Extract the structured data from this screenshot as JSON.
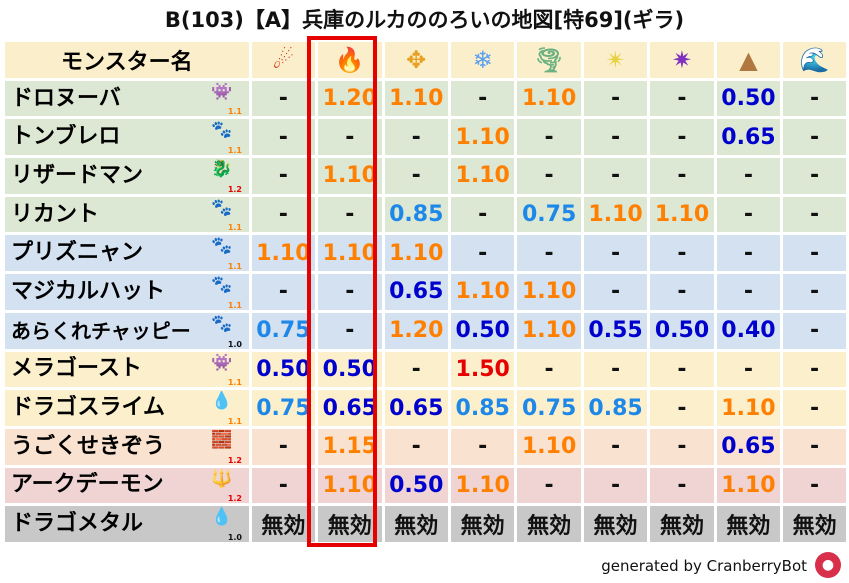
{
  "title": "B(103)【A】兵庫のルカののろいの地図[特69](ギラ)",
  "header": {
    "name_label": "モンスター名",
    "elements": [
      {
        "icon": "fire-ball-icon",
        "glyph": "☄",
        "color": "#e03010"
      },
      {
        "icon": "flame-icon",
        "glyph": "🔥",
        "color": "#ff5a00"
      },
      {
        "icon": "explosion-icon",
        "glyph": "✥",
        "color": "#e8a020"
      },
      {
        "icon": "ice-flower-icon",
        "glyph": "❄",
        "color": "#5aa0f0"
      },
      {
        "icon": "tornado-icon",
        "glyph": "🌪",
        "color": "#6ab080"
      },
      {
        "icon": "light-star-icon",
        "glyph": "✴",
        "color": "#e8d040"
      },
      {
        "icon": "dark-vortex-icon",
        "glyph": "✷",
        "color": "#8030c0"
      },
      {
        "icon": "earth-mountain-icon",
        "glyph": "▲",
        "color": "#b07840"
      },
      {
        "icon": "water-wave-icon",
        "glyph": "🌊",
        "color": "#2070d0"
      }
    ]
  },
  "highlight_column": 2,
  "row_colors": {
    "green": "#dde8d4",
    "blue": "#d3e1f1",
    "yellow": "#fcf0cc",
    "peach": "#f9e2cf",
    "pink": "#f0d4d4",
    "gray": "#c8c8c8"
  },
  "rows": [
    {
      "name": "ドロヌーバ",
      "icon": "ghost-icon",
      "glyph": "👾",
      "sub": "1.1",
      "sub_color": "#ff8000",
      "bg": "green",
      "values": [
        "-",
        "1.20",
        "1.10",
        "-",
        "1.10",
        "-",
        "-",
        "0.50",
        "-"
      ]
    },
    {
      "name": "トンブレロ",
      "icon": "paw-icon",
      "glyph": "🐾",
      "sub": "1.1",
      "sub_color": "#ff8000",
      "bg": "green",
      "values": [
        "-",
        "-",
        "-",
        "1.10",
        "-",
        "-",
        "-",
        "0.65",
        "-"
      ]
    },
    {
      "name": "リザードマン",
      "icon": "dragon-icon",
      "glyph": "🐉",
      "sub": "1.2",
      "sub_color": "#e60000",
      "bg": "green",
      "values": [
        "-",
        "1.10",
        "-",
        "1.10",
        "-",
        "-",
        "-",
        "-",
        "-"
      ]
    },
    {
      "name": "リカント",
      "icon": "paw-icon",
      "glyph": "🐾",
      "sub": "1.1",
      "sub_color": "#ff8000",
      "bg": "green",
      "values": [
        "-",
        "-",
        "0.85",
        "-",
        "0.75",
        "1.10",
        "1.10",
        "-",
        "-"
      ]
    },
    {
      "name": "プリズニャン",
      "icon": "paw-icon",
      "glyph": "🐾",
      "sub": "1.1",
      "sub_color": "#ff8000",
      "bg": "blue",
      "values": [
        "1.10",
        "1.10",
        "1.10",
        "-",
        "-",
        "-",
        "-",
        "-",
        "-"
      ]
    },
    {
      "name": "マジカルハット",
      "icon": "paw-icon",
      "glyph": "🐾",
      "sub": "1.1",
      "sub_color": "#ff8000",
      "bg": "blue",
      "values": [
        "-",
        "-",
        "0.65",
        "1.10",
        "1.10",
        "-",
        "-",
        "-",
        "-"
      ]
    },
    {
      "name": "あらくれチャッピー",
      "icon": "paw-icon",
      "glyph": "🐾",
      "sub": "1.0",
      "sub_color": "#111111",
      "bg": "blue",
      "values": [
        "0.75",
        "-",
        "1.20",
        "0.50",
        "1.10",
        "0.55",
        "0.50",
        "0.40",
        "-"
      ]
    },
    {
      "name": "メラゴースト",
      "icon": "ghost-icon",
      "glyph": "👾",
      "sub": "1.1",
      "sub_color": "#ff8000",
      "bg": "yellow",
      "values": [
        "0.50",
        "0.50",
        "-",
        "1.50",
        "-",
        "-",
        "-",
        "-",
        "-"
      ]
    },
    {
      "name": "ドラゴスライム",
      "icon": "slime-icon",
      "glyph": "💧",
      "sub": "1.1",
      "sub_color": "#ff8000",
      "bg": "yellow",
      "values": [
        "0.75",
        "0.65",
        "0.65",
        "0.85",
        "0.75",
        "0.85",
        "-",
        "1.10",
        "-"
      ]
    },
    {
      "name": "うごくせきぞう",
      "icon": "stone-wall-icon",
      "glyph": "🧱",
      "sub": "1.2",
      "sub_color": "#e60000",
      "bg": "peach",
      "values": [
        "-",
        "1.15",
        "-",
        "-",
        "1.10",
        "-",
        "-",
        "0.65",
        "-"
      ]
    },
    {
      "name": "アークデーモン",
      "icon": "demon-trident-icon",
      "glyph": "🔱",
      "sub": "1.2",
      "sub_color": "#e60000",
      "bg": "pink",
      "values": [
        "-",
        "1.10",
        "0.50",
        "1.10",
        "-",
        "-",
        "-",
        "1.10",
        "-"
      ]
    },
    {
      "name": "ドラゴメタル",
      "icon": "slime-icon",
      "glyph": "💧",
      "sub": "1.0",
      "sub_color": "#111111",
      "bg": "gray",
      "values": [
        "無効",
        "無効",
        "無効",
        "無効",
        "無効",
        "無効",
        "無効",
        "無効",
        "無効"
      ]
    }
  ],
  "footer": "generated by CranberryBot"
}
